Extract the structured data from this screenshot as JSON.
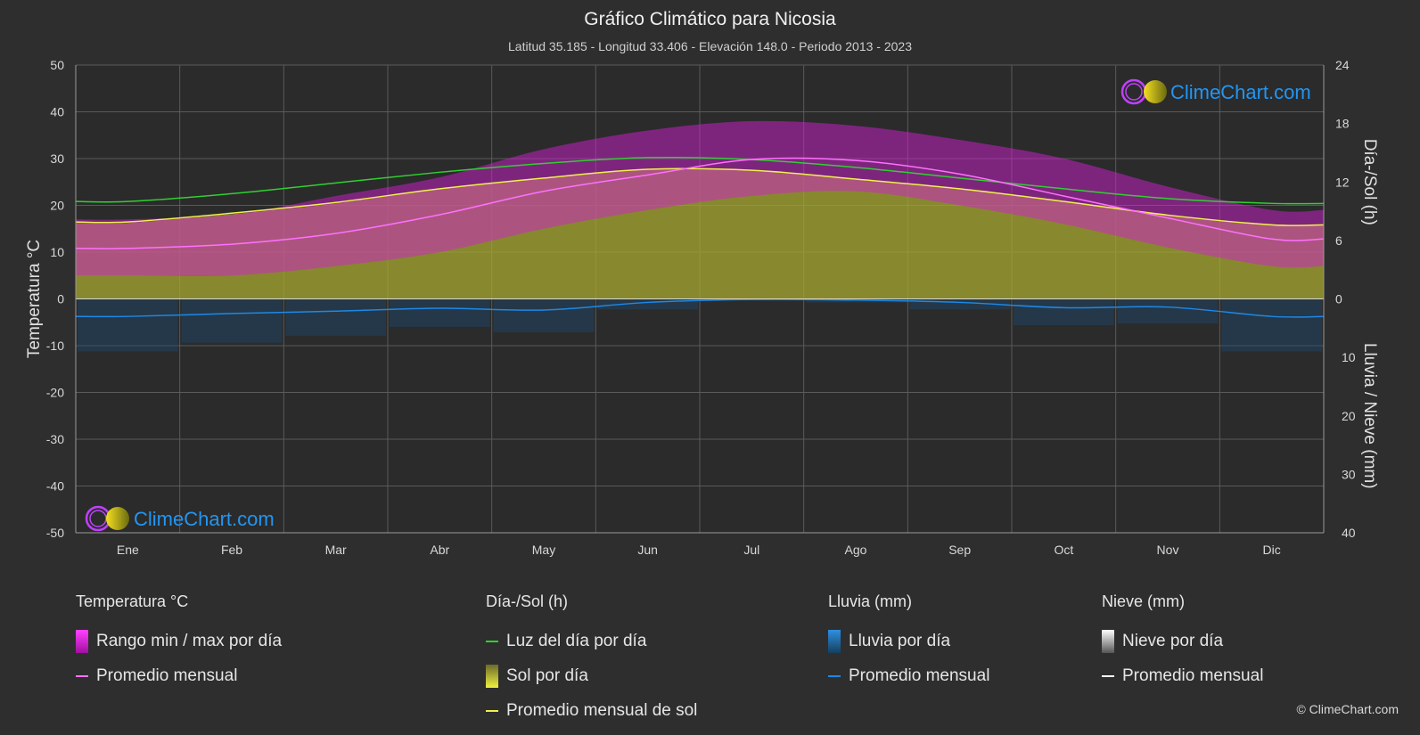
{
  "title": "Gráfico Climático para Nicosia",
  "subtitle": "Latitud 35.185 - Longitud 33.406 - Elevación 148.0 - Periodo 2013 - 2023",
  "watermark": "ClimeChart.com",
  "copyright": "© ClimeChart.com",
  "colors": {
    "background": "#2e2e2e",
    "temp_range": "#d020d0",
    "temp_avg": "#ff70ff",
    "daylight": "#30d030",
    "sunshine": "#a8a830",
    "sunshine_avg": "#f0f050",
    "rain": "#2a7ab8",
    "rain_avg": "#1e88e5",
    "snow_avg": "#ffffff",
    "watermark_text": "#2196f3"
  },
  "chart_data": {
    "type": "area",
    "months": [
      "Ene",
      "Feb",
      "Mar",
      "Abr",
      "May",
      "Jun",
      "Jul",
      "Ago",
      "Sep",
      "Oct",
      "Nov",
      "Dic"
    ],
    "left_axis": {
      "label": "Temperatura °C",
      "min": -50,
      "max": 50,
      "ticks": [
        50,
        40,
        30,
        20,
        10,
        0,
        -10,
        -20,
        -30,
        -40,
        -50
      ]
    },
    "right_axis_top": {
      "label": "Día-/Sol (h)",
      "min": 0,
      "max": 24,
      "ticks": [
        24,
        18,
        12,
        6,
        0
      ]
    },
    "right_axis_bottom": {
      "label": "Lluvia / Nieve (mm)",
      "min": 0,
      "max": 40,
      "ticks": [
        0,
        10,
        20,
        30,
        40
      ]
    },
    "series": [
      {
        "name": "Rango min / max por día",
        "kind": "band",
        "min": [
          5,
          5,
          7,
          10,
          15,
          19,
          22,
          23,
          20,
          16,
          11,
          7
        ],
        "max": [
          17,
          18,
          22,
          26,
          32,
          36,
          38,
          37,
          34,
          30,
          24,
          19
        ]
      },
      {
        "name": "Promedio mensual",
        "group": "Temperatura °C",
        "values": [
          10.8,
          11.7,
          14.0,
          18.0,
          23.0,
          26.5,
          29.8,
          29.6,
          26.7,
          22.0,
          17.3,
          12.8
        ]
      },
      {
        "name": "Luz del día por día",
        "unit": "h",
        "values": [
          10.0,
          10.8,
          11.9,
          13.0,
          13.9,
          14.5,
          14.3,
          13.5,
          12.4,
          11.3,
          10.3,
          9.8
        ]
      },
      {
        "name": "Sol por día",
        "unit": "h",
        "values": [
          7.8,
          8.7,
          9.8,
          11.3,
          12.4,
          13.3,
          13.2,
          12.3,
          11.3,
          10.0,
          8.6,
          7.6
        ]
      },
      {
        "name": "Promedio mensual de sol",
        "unit": "h",
        "values": [
          7.9,
          8.8,
          9.9,
          11.3,
          12.4,
          13.3,
          13.2,
          12.3,
          11.3,
          10.0,
          8.6,
          7.6
        ]
      },
      {
        "name": "Promedio mensual",
        "group": "Lluvia (mm)",
        "unit": "mm",
        "values": [
          3.0,
          2.5,
          2.1,
          1.6,
          1.9,
          0.6,
          0.1,
          0.2,
          0.6,
          1.5,
          1.4,
          3.0
        ]
      },
      {
        "name": "Promedio mensual",
        "group": "Nieve (mm)",
        "unit": "mm",
        "values": [
          0,
          0,
          0,
          0,
          0,
          0,
          0,
          0,
          0,
          0,
          0,
          0
        ]
      }
    ],
    "grid": true
  },
  "legend": {
    "temp": {
      "head": "Temperatura °C",
      "range": "Rango min / max por día",
      "avg": "Promedio mensual"
    },
    "sun": {
      "head": "Día-/Sol (h)",
      "daylight": "Luz del día por día",
      "sun": "Sol por día",
      "sun_avg": "Promedio mensual de sol"
    },
    "rain": {
      "head": "Lluvia (mm)",
      "rain": "Lluvia por día",
      "avg": "Promedio mensual"
    },
    "snow": {
      "head": "Nieve (mm)",
      "snow": "Nieve por día",
      "avg": "Promedio mensual"
    }
  }
}
